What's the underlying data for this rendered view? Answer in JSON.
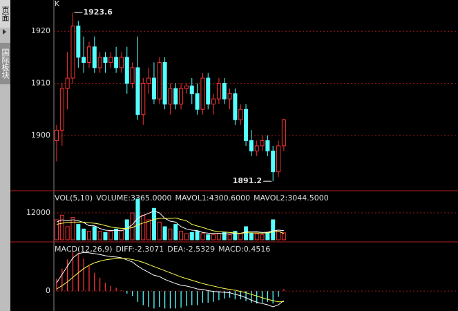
{
  "sidebar": {
    "tabs": [
      "页面",
      "国际板块"
    ]
  },
  "chart_data": [
    {
      "type": "candlestick",
      "title": "K",
      "ylim": [
        1889.5,
        1926
      ],
      "yticks": [
        1900,
        1910,
        1920
      ],
      "grid": true,
      "up_color": "#ff3232",
      "down_color": "#54ffff",
      "annotations": [
        1923.6,
        1891.2
      ],
      "series": [
        {
          "name": "open",
          "values": [
            1899,
            1901,
            1909,
            1911,
            1921,
            1915,
            1914,
            1917,
            1913,
            1915,
            1914,
            1915,
            1913,
            1915,
            1910,
            1913,
            1904,
            1910,
            1911,
            1907,
            1914,
            1906,
            1909,
            1906,
            1909,
            1909.5,
            1908,
            1905,
            1911,
            1906,
            1907,
            1910,
            1907,
            1908,
            1903,
            1905,
            1899,
            1897,
            1898,
            1899,
            1897,
            1893,
            1898
          ]
        },
        {
          "name": "high",
          "values": [
            1902,
            1910,
            1916,
            1923.6,
            1922,
            1919,
            1918,
            1919,
            1916,
            1916,
            1916,
            1917,
            1916,
            1917,
            1914,
            1919,
            1911,
            1913,
            1914,
            1915,
            1915,
            1910,
            1910,
            1910,
            1910,
            1911,
            1910,
            1912,
            1912,
            1908,
            1911,
            1911,
            1909,
            1909,
            1906,
            1906,
            1901,
            1899,
            1900,
            1900,
            1898,
            1899,
            1903.2
          ]
        },
        {
          "name": "low",
          "values": [
            1895,
            1898,
            1905,
            1910,
            1913,
            1912,
            1913,
            1912,
            1912,
            1912,
            1913,
            1912,
            1912,
            1908,
            1909,
            1903,
            1902,
            1908,
            1906,
            1906,
            1905,
            1904,
            1905,
            1905,
            1908,
            1906,
            1904,
            1904,
            1905,
            1904,
            1906,
            1906,
            1905,
            1902,
            1902,
            1898,
            1896,
            1896,
            1897,
            1896,
            1891.2,
            1892,
            1897
          ]
        },
        {
          "name": "close",
          "values": [
            1901,
            1909,
            1911,
            1921,
            1915,
            1914,
            1917,
            1913,
            1915,
            1914,
            1915,
            1913,
            1915,
            1910,
            1913,
            1904,
            1910,
            1911,
            1907,
            1914,
            1906,
            1909,
            1906,
            1909,
            1909.5,
            1908,
            1905,
            1911,
            1906,
            1907,
            1910,
            1907,
            1908,
            1903,
            1905,
            1899,
            1897,
            1898,
            1899,
            1897,
            1893,
            1898,
            1903
          ]
        }
      ]
    },
    {
      "type": "volume",
      "header": [
        {
          "text": "VOL(5,10)",
          "color": "#dddddd"
        },
        {
          "text": "VOLUME:3365.0000",
          "color": "#dddddd"
        },
        {
          "text": "MAVOL1:4300.6000",
          "color": "#dddddd"
        },
        {
          "text": "MAVOL2:3044.5000",
          "color": "#ffff55"
        }
      ],
      "ylim": [
        0,
        21000
      ],
      "yticks": [
        12000
      ],
      "grid": true,
      "values": [
        9000,
        11000,
        6000,
        10000,
        7000,
        5000,
        4000,
        6000,
        4000,
        3500,
        4000,
        5000,
        4500,
        9000,
        12000,
        18000,
        11000,
        9000,
        14000,
        8000,
        6000,
        5000,
        7000,
        4000,
        3000,
        3500,
        4000,
        3000,
        2500,
        2500,
        3000,
        3500,
        2500,
        4000,
        3000,
        6000,
        3000,
        3000,
        2500,
        3500,
        9000,
        4500,
        3365
      ],
      "lines": [
        {
          "color": "#ffffff",
          "values": [
            8000,
            9000,
            8500,
            9000,
            8600,
            7800,
            6400,
            6400,
            5200,
            4500,
            4300,
            4500,
            4200,
            5200,
            6900,
            9700,
            10900,
            11800,
            12800,
            12000,
            9600,
            8400,
            8000,
            6000,
            5000,
            4500,
            4300,
            3500,
            3200,
            3100,
            3100,
            3000,
            2800,
            3100,
            3100,
            3800,
            3700,
            3800,
            3500,
            3600,
            4200,
            4500,
            4300.6
          ]
        },
        {
          "color": "#ffff55",
          "values": [
            7000,
            7500,
            7800,
            8000,
            8000,
            8000,
            7700,
            7500,
            7100,
            6500,
            5900,
            5500,
            5300,
            5200,
            5600,
            6800,
            7600,
            8300,
            9100,
            9600,
            9600,
            9600,
            9800,
            9100,
            8600,
            7000,
            6300,
            5700,
            4900,
            4200,
            3800,
            3700,
            3500,
            3300,
            3100,
            3400,
            3300,
            3300,
            3200,
            3300,
            3700,
            4000,
            3044.5
          ]
        }
      ]
    },
    {
      "type": "macd",
      "header": [
        {
          "text": "MACD(12,26,9)",
          "color": "#dddddd"
        },
        {
          "text": "DIFF:-2.3071",
          "color": "#dddddd"
        },
        {
          "text": "DEA:-2.5329",
          "color": "#ffff55"
        },
        {
          "text": "MACD:0.4516",
          "color": "#dddddd"
        }
      ],
      "ylim": [
        -4.8,
        11.5
      ],
      "yticks": [
        0
      ],
      "grid": true,
      "values": [
        3,
        5.4,
        7.6,
        9.4,
        9.2,
        7.8,
        6,
        4.4,
        3.2,
        2,
        1.2,
        0.8,
        0.2,
        -0.6,
        -1.2,
        -2.6,
        -3.4,
        -3.8,
        -4.2,
        -3.8,
        -4.2,
        -4.2,
        -4.2,
        -4,
        -3.6,
        -3.4,
        -3.4,
        -2.8,
        -2.8,
        -2.6,
        -2.2,
        -1.8,
        -1.6,
        -2,
        -2,
        -2.4,
        -2.8,
        -3,
        -2.8,
        -2.6,
        -3,
        -1.4,
        0.4516
      ],
      "lines": [
        {
          "color": "#ffffff",
          "values": [
            2,
            4,
            6,
            8,
            9,
            9.3,
            9.2,
            9,
            8.8,
            8.5,
            8.3,
            8.2,
            8,
            7.5,
            7,
            6,
            5.2,
            4.5,
            3.8,
            3.5,
            2.8,
            2.3,
            1.8,
            1.4,
            1.2,
            0.9,
            0.5,
            0.4,
            0.1,
            -0.1,
            -0.2,
            -0.3,
            -0.4,
            -0.8,
            -1.1,
            -1.6,
            -2.2,
            -2.7,
            -3,
            -3.3,
            -3.8,
            -3.3,
            -2.3071
          ]
        },
        {
          "color": "#ffff55",
          "values": [
            0.5,
            1.3,
            2.2,
            3.3,
            4.4,
            5.4,
            6.2,
            6.8,
            7.2,
            7.5,
            7.7,
            7.8,
            7.9,
            7.8,
            7.6,
            7.3,
            6.9,
            6.4,
            5.9,
            5.4,
            4.9,
            4.4,
            3.9,
            3.4,
            3,
            2.6,
            2.2,
            1.8,
            1.5,
            1.2,
            0.9,
            0.6,
            0.4,
            0.2,
            -0.1,
            -0.4,
            -0.8,
            -1.2,
            -1.6,
            -2,
            -2.3,
            -2.6,
            -2.5329
          ]
        }
      ]
    }
  ]
}
